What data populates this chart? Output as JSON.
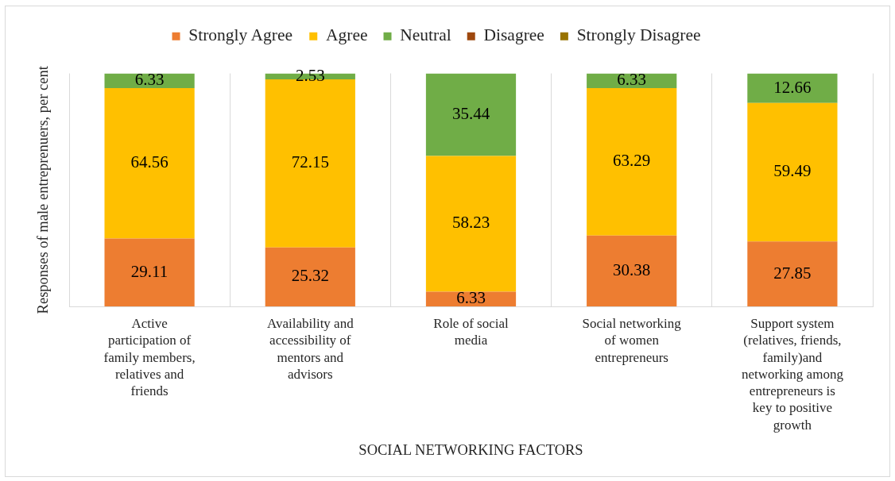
{
  "chart_data": {
    "type": "bar",
    "stacked": true,
    "xlabel": "SOCIAL NETWORKING FACTORS",
    "ylabel": "Responses of male entreprenuers, per cent",
    "categories": [
      "Active participation of family members, relatives and friends",
      "Availability and accessibility of mentors and advisors",
      "Role of social media",
      "Social networking of women entrepreneurs",
      "Support system (relatives, friends, family)and networking among entrepreneurs is key to positive growth"
    ],
    "series": [
      {
        "name": "Strongly Agree",
        "color": "#ed7d31",
        "values": [
          29.11,
          25.32,
          6.33,
          30.38,
          27.85
        ],
        "value_labels": [
          "29.11",
          "25.32",
          "6.33",
          "30.38",
          "27.85"
        ]
      },
      {
        "name": "Agree",
        "color": "#ffc000",
        "values": [
          64.56,
          72.15,
          58.23,
          63.29,
          59.49
        ],
        "value_labels": [
          "64.56",
          "72.15",
          "58.23",
          "63.29",
          "59.49"
        ]
      },
      {
        "name": "Neutral",
        "color": "#70ad47",
        "values": [
          6.33,
          2.53,
          35.44,
          6.33,
          12.66
        ],
        "value_labels": [
          "6.33",
          "2.53",
          "35.44",
          "6.33",
          "12.66"
        ]
      },
      {
        "name": "Disagree",
        "color": "#9e480e",
        "values": [
          0,
          0,
          0,
          0,
          0
        ],
        "value_labels": [
          null,
          null,
          null,
          null,
          null
        ]
      },
      {
        "name": "Strongly Disagree",
        "color": "#997300",
        "values": [
          0,
          0,
          0,
          0,
          0
        ],
        "value_labels": [
          null,
          null,
          null,
          null,
          null
        ]
      }
    ],
    "ylim": [
      0,
      100
    ],
    "grid": "x",
    "legend": "top",
    "tick_labels": "x"
  }
}
